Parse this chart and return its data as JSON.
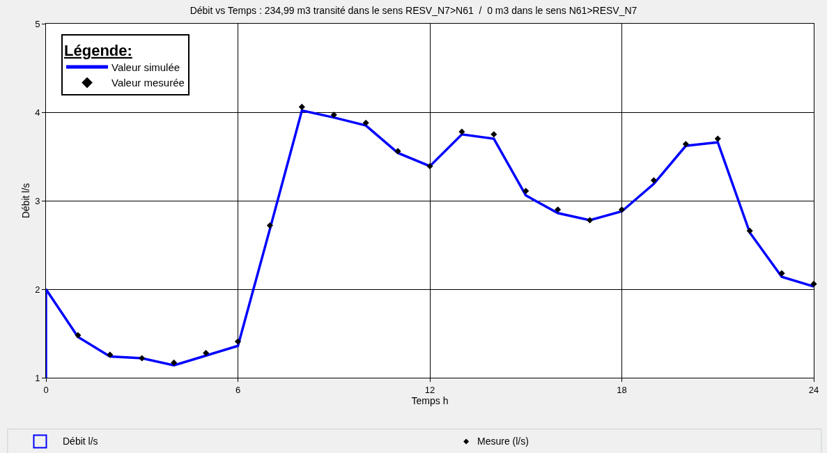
{
  "chart_data": {
    "type": "line",
    "title": "Débit vs Temps : 234,99 m3 transité dans le sens RESV_N7>N61  /  0 m3 dans le sens N61>RESV_N7",
    "xlabel": "Temps h",
    "ylabel": "Débit l/s",
    "legend_title": "Légende:",
    "legend": "top left",
    "grid": true,
    "x": [
      1,
      2,
      3,
      4,
      5,
      6,
      7,
      8,
      9,
      10,
      11,
      12,
      13,
      14,
      15,
      16,
      17,
      18,
      19,
      20,
      21,
      22,
      23,
      24
    ],
    "xlim": [
      0,
      24
    ],
    "xticks": [
      0,
      6,
      12,
      18,
      24
    ],
    "ylim": [
      1,
      5
    ],
    "yticks": [
      1,
      2,
      3,
      4,
      5
    ],
    "series": [
      {
        "name": "Valeur mesurée",
        "type": "scatter",
        "marker": "diamond",
        "color": "#000000",
        "values": [
          1.48,
          1.26,
          1.22,
          1.17,
          1.28,
          1.41,
          2.72,
          4.06,
          3.97,
          3.88,
          3.56,
          3.39,
          3.78,
          3.75,
          3.11,
          2.9,
          2.78,
          2.9,
          3.23,
          3.64,
          3.7,
          2.66,
          2.18,
          2.06
        ]
      },
      {
        "name": "Valeur simulée",
        "marker": "none",
        "line_style": "solid",
        "color": "#0000ff",
        "x": [
          0,
          0,
          1,
          2,
          3,
          4,
          5,
          6,
          7,
          8,
          9,
          10,
          11,
          12,
          13,
          14,
          15,
          16,
          17,
          18,
          19,
          20,
          21,
          22,
          23,
          24
        ],
        "values": [
          1,
          2,
          1.46,
          1.24,
          1.22,
          1.14,
          1.25,
          1.36,
          2.68,
          4.02,
          3.94,
          3.85,
          3.54,
          3.39,
          3.75,
          3.7,
          3.06,
          2.86,
          2.78,
          2.88,
          3.19,
          3.62,
          3.66,
          2.64,
          2.14,
          2.03
        ]
      }
    ],
    "annotations": [
      "Débit l/s",
      "Mesure (l/s)"
    ]
  }
}
